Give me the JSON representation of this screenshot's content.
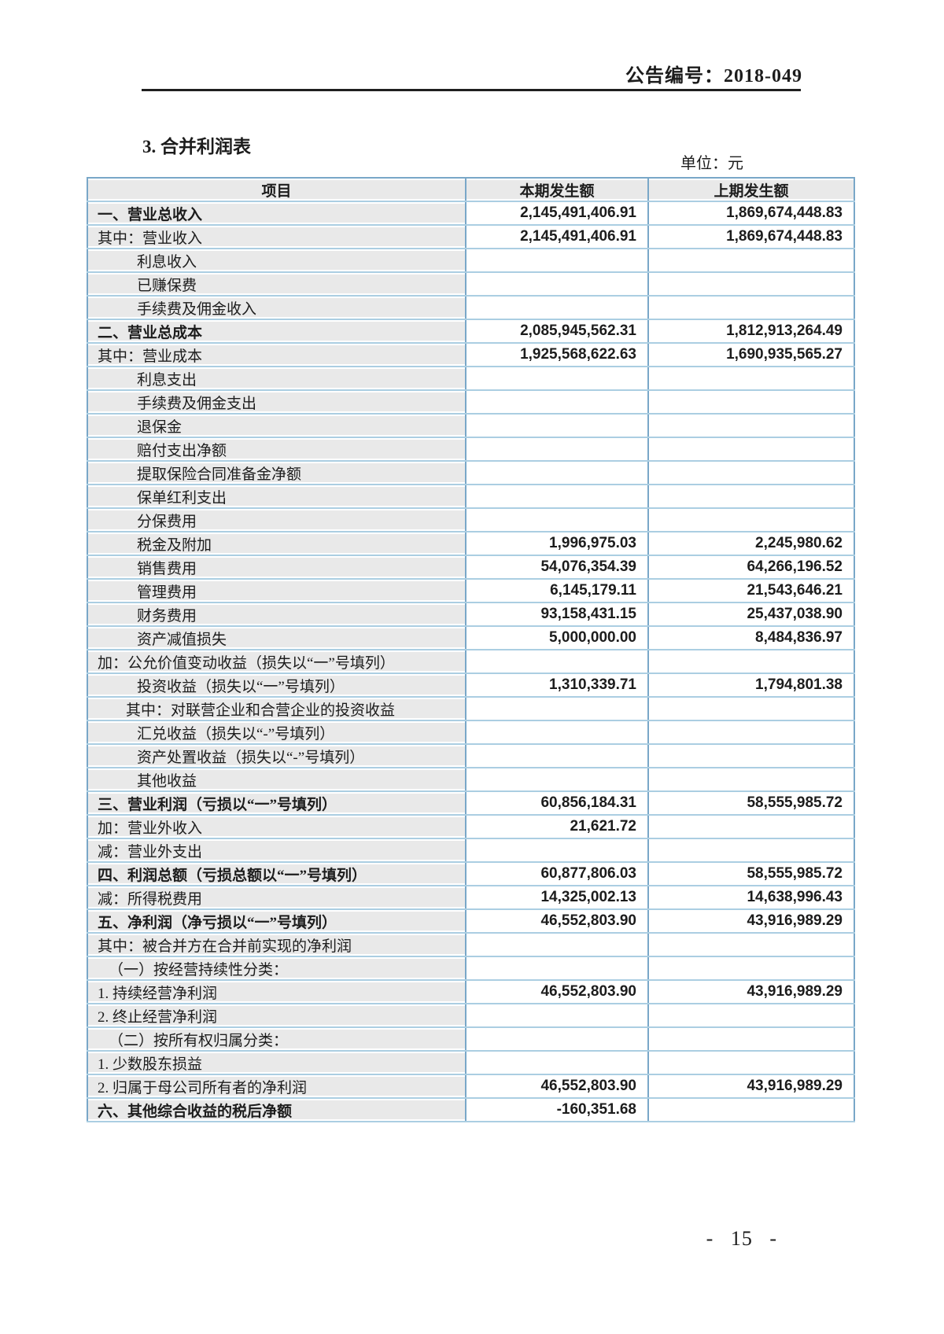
{
  "header": {
    "doc_number": "公告编号：2018-049"
  },
  "section": {
    "title": "3.  合并利润表",
    "unit": "单位：元"
  },
  "table": {
    "columns": [
      "项目",
      "本期发生额",
      "上期发生额"
    ],
    "rows": [
      {
        "label": "一、营业总收入",
        "indent": 0,
        "bold": true,
        "current": "2,145,491,406.91",
        "previous": "1,869,674,448.83"
      },
      {
        "label": "其中：营业收入",
        "indent": 0,
        "bold": false,
        "current": "2,145,491,406.91",
        "previous": "1,869,674,448.83"
      },
      {
        "label": "利息收入",
        "indent": 1,
        "bold": false,
        "current": "",
        "previous": ""
      },
      {
        "label": "已赚保费",
        "indent": 1,
        "bold": false,
        "current": "",
        "previous": ""
      },
      {
        "label": "手续费及佣金收入",
        "indent": 1,
        "bold": false,
        "current": "",
        "previous": ""
      },
      {
        "label": "二、营业总成本",
        "indent": 0,
        "bold": true,
        "current": "2,085,945,562.31",
        "previous": "1,812,913,264.49"
      },
      {
        "label": "其中：营业成本",
        "indent": 0,
        "bold": false,
        "current": "1,925,568,622.63",
        "previous": "1,690,935,565.27"
      },
      {
        "label": "利息支出",
        "indent": 1,
        "bold": false,
        "current": "",
        "previous": ""
      },
      {
        "label": "手续费及佣金支出",
        "indent": 1,
        "bold": false,
        "current": "",
        "previous": ""
      },
      {
        "label": "退保金",
        "indent": 1,
        "bold": false,
        "current": "",
        "previous": ""
      },
      {
        "label": "赔付支出净额",
        "indent": 1,
        "bold": false,
        "current": "",
        "previous": ""
      },
      {
        "label": "提取保险合同准备金净额",
        "indent": 1,
        "bold": false,
        "current": "",
        "previous": ""
      },
      {
        "label": "保单红利支出",
        "indent": 1,
        "bold": false,
        "current": "",
        "previous": ""
      },
      {
        "label": "分保费用",
        "indent": 1,
        "bold": false,
        "current": "",
        "previous": ""
      },
      {
        "label": "税金及附加",
        "indent": 1,
        "bold": false,
        "current": "1,996,975.03",
        "previous": "2,245,980.62"
      },
      {
        "label": "销售费用",
        "indent": 1,
        "bold": false,
        "current": "54,076,354.39",
        "previous": "64,266,196.52"
      },
      {
        "label": "管理费用",
        "indent": 1,
        "bold": false,
        "current": "6,145,179.11",
        "previous": "21,543,646.21"
      },
      {
        "label": "财务费用",
        "indent": 1,
        "bold": false,
        "current": "93,158,431.15",
        "previous": "25,437,038.90"
      },
      {
        "label": "资产减值损失",
        "indent": 1,
        "bold": false,
        "current": "5,000,000.00",
        "previous": "8,484,836.97"
      },
      {
        "label": "加：公允价值变动收益（损失以“一”号填列）",
        "indent": 0,
        "bold": false,
        "current": "",
        "previous": ""
      },
      {
        "label": "投资收益（损失以“一”号填列）",
        "indent": 1,
        "bold": false,
        "current": "1,310,339.71",
        "previous": "1,794,801.38"
      },
      {
        "label": "其中：对联营企业和合营企业的投资收益",
        "indent": 2,
        "bold": false,
        "current": "",
        "previous": ""
      },
      {
        "label": "汇兑收益（损失以“-”号填列）",
        "indent": 1,
        "bold": false,
        "current": "",
        "previous": ""
      },
      {
        "label": "资产处置收益（损失以“-”号填列）",
        "indent": 1,
        "bold": false,
        "current": "",
        "previous": ""
      },
      {
        "label": "其他收益",
        "indent": 1,
        "bold": false,
        "current": "",
        "previous": ""
      },
      {
        "label": "三、营业利润（亏损以“一”号填列）",
        "indent": 0,
        "bold": true,
        "current": "60,856,184.31",
        "previous": "58,555,985.72"
      },
      {
        "label": "加：营业外收入",
        "indent": 0,
        "bold": false,
        "current": "21,621.72",
        "previous": ""
      },
      {
        "label": "减：营业外支出",
        "indent": 0,
        "bold": false,
        "current": "",
        "previous": ""
      },
      {
        "label": "四、利润总额（亏损总额以“一”号填列）",
        "indent": 0,
        "bold": true,
        "current": "60,877,806.03",
        "previous": "58,555,985.72"
      },
      {
        "label": "减：所得税费用",
        "indent": 0,
        "bold": false,
        "current": "14,325,002.13",
        "previous": "14,638,996.43"
      },
      {
        "label": "五、净利润（净亏损以“一”号填列）",
        "indent": 0,
        "bold": true,
        "current": "46,552,803.90",
        "previous": "43,916,989.29"
      },
      {
        "label": "其中：被合并方在合并前实现的净利润",
        "indent": 0,
        "bold": false,
        "current": "",
        "previous": ""
      },
      {
        "label": "（一）按经营持续性分类：",
        "indent": 3,
        "bold": false,
        "current": "",
        "previous": ""
      },
      {
        "label": "1. 持续经营净利润",
        "indent": 0,
        "bold": false,
        "current": "46,552,803.90",
        "previous": "43,916,989.29"
      },
      {
        "label": "2. 终止经营净利润",
        "indent": 0,
        "bold": false,
        "current": "",
        "previous": ""
      },
      {
        "label": "（二）按所有权归属分类：",
        "indent": 3,
        "bold": false,
        "current": "",
        "previous": ""
      },
      {
        "label": "1. 少数股东损益",
        "indent": 0,
        "bold": false,
        "current": "",
        "previous": ""
      },
      {
        "label": "2. 归属于母公司所有者的净利润",
        "indent": 0,
        "bold": false,
        "current": "46,552,803.90",
        "previous": "43,916,989.29"
      },
      {
        "label": "六、其他综合收益的税后净额",
        "indent": 0,
        "bold": true,
        "current": "-160,351.68",
        "previous": ""
      }
    ]
  },
  "footer": {
    "page_number": "- 15 -"
  }
}
